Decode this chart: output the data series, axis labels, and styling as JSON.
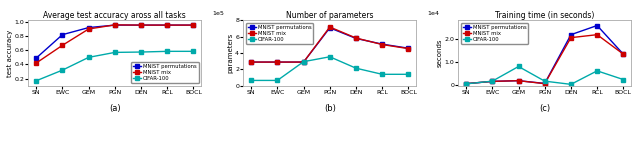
{
  "x_labels": [
    "SN",
    "EWC",
    "GEM",
    "PGN",
    "DEN",
    "RCL",
    "BOCL"
  ],
  "plot1": {
    "title": "Average test accuracy aross all tasks",
    "ylabel": "test accuracy",
    "mnist_perm": [
      0.49,
      0.82,
      0.92,
      0.955,
      0.955,
      0.955,
      0.955
    ],
    "mnist_mix": [
      0.42,
      0.67,
      0.9,
      0.958,
      0.955,
      0.955,
      0.955
    ],
    "cifar100": [
      0.17,
      0.32,
      0.5,
      0.57,
      0.575,
      0.585,
      0.585
    ],
    "ylim": [
      0.1,
      1.02
    ],
    "yticks": [
      0.2,
      0.4,
      0.6,
      0.8,
      1.0
    ],
    "legend_loc": "lower right"
  },
  "plot2": {
    "title": "Number of parameters",
    "ylabel": "parameters",
    "mnist_perm": [
      290000,
      290000,
      290000,
      710000,
      580000,
      510000,
      460000
    ],
    "mnist_mix": [
      290000,
      290000,
      290000,
      720000,
      585000,
      505000,
      455000
    ],
    "cifar100": [
      65000,
      65000,
      295000,
      355000,
      215000,
      140000,
      140000
    ],
    "ylim": [
      0,
      800000
    ],
    "yticks": [
      100000,
      200000,
      300000,
      400000,
      500000,
      600000,
      700000
    ],
    "legend_loc": "upper left"
  },
  "plot3": {
    "title": "Training time (in seconds)",
    "ylabel": "seconds",
    "mnist_perm": [
      400,
      1400,
      1700,
      500,
      21800,
      25800,
      13300
    ],
    "mnist_mix": [
      400,
      1400,
      1700,
      400,
      20500,
      21800,
      13300
    ],
    "cifar100": [
      300,
      1500,
      7900,
      1500,
      100,
      6000,
      2200
    ],
    "ylim": [
      -500,
      28000
    ],
    "yticks": [
      0,
      5000,
      10000,
      15000,
      20000,
      25000
    ],
    "legend_loc": "upper left"
  },
  "colors": {
    "mnist_perm": "#0000cc",
    "mnist_mix": "#cc0000",
    "cifar100": "#00aaaa"
  },
  "legend_labels": [
    "MNIST permutations",
    "MNIST mix",
    "CIFAR-100"
  ],
  "subplot_labels": [
    "(a)",
    "(b)",
    "(c)"
  ]
}
